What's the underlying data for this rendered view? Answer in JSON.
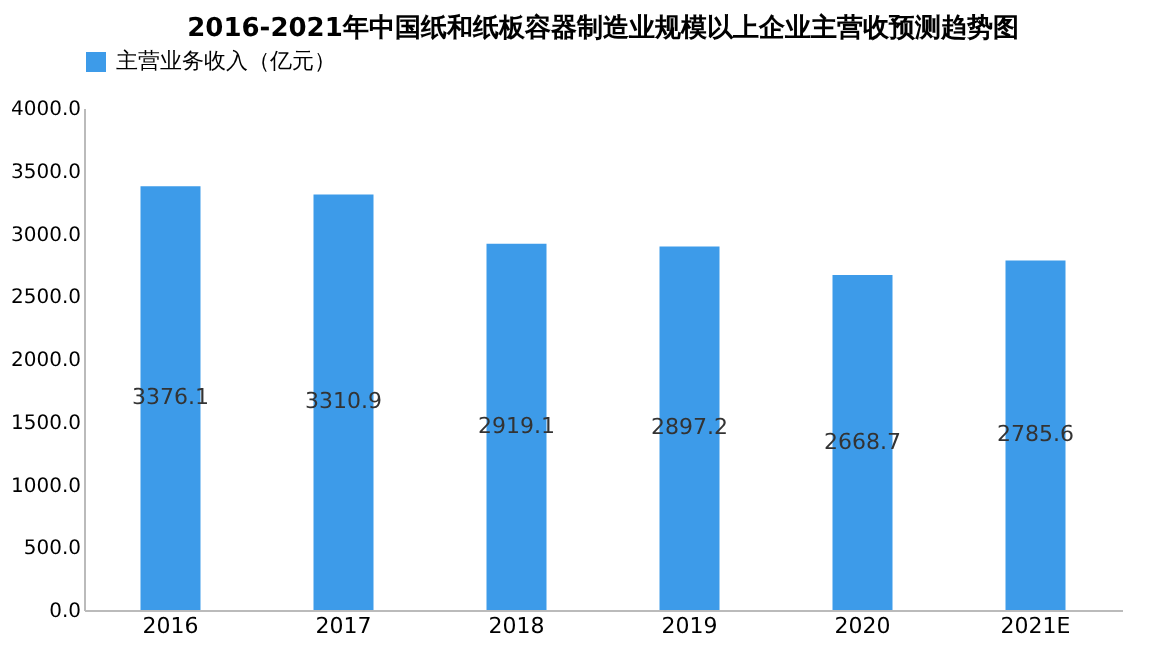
{
  "chart_data": {
    "type": "bar",
    "title": "2016-2021年中国纸和纸板容器制造业规模以上企业主营收预测趋势图",
    "categories": [
      "2016",
      "2017",
      "2018",
      "2019",
      "2020",
      "2021E"
    ],
    "series": [
      {
        "name": "主营业务收入（亿元）",
        "color": "#3d9be9",
        "values": [
          3376.1,
          3310.9,
          2919.1,
          2897.2,
          2668.7,
          2785.6
        ]
      }
    ],
    "ylim": [
      0,
      4000
    ],
    "yticks": [
      {
        "value": 0,
        "label": "0.0"
      },
      {
        "value": 500,
        "label": "500.0"
      },
      {
        "value": 1000,
        "label": "1000.0"
      },
      {
        "value": 1500,
        "label": "1500.0"
      },
      {
        "value": 2000,
        "label": "2000.0"
      },
      {
        "value": 2500,
        "label": "2500.0"
      },
      {
        "value": 3000,
        "label": "3000.0"
      },
      {
        "value": 3500,
        "label": "3500.0"
      },
      {
        "value": 4000,
        "label": "4000.0"
      }
    ],
    "data_labels": true,
    "legend": "top",
    "grid": false
  }
}
